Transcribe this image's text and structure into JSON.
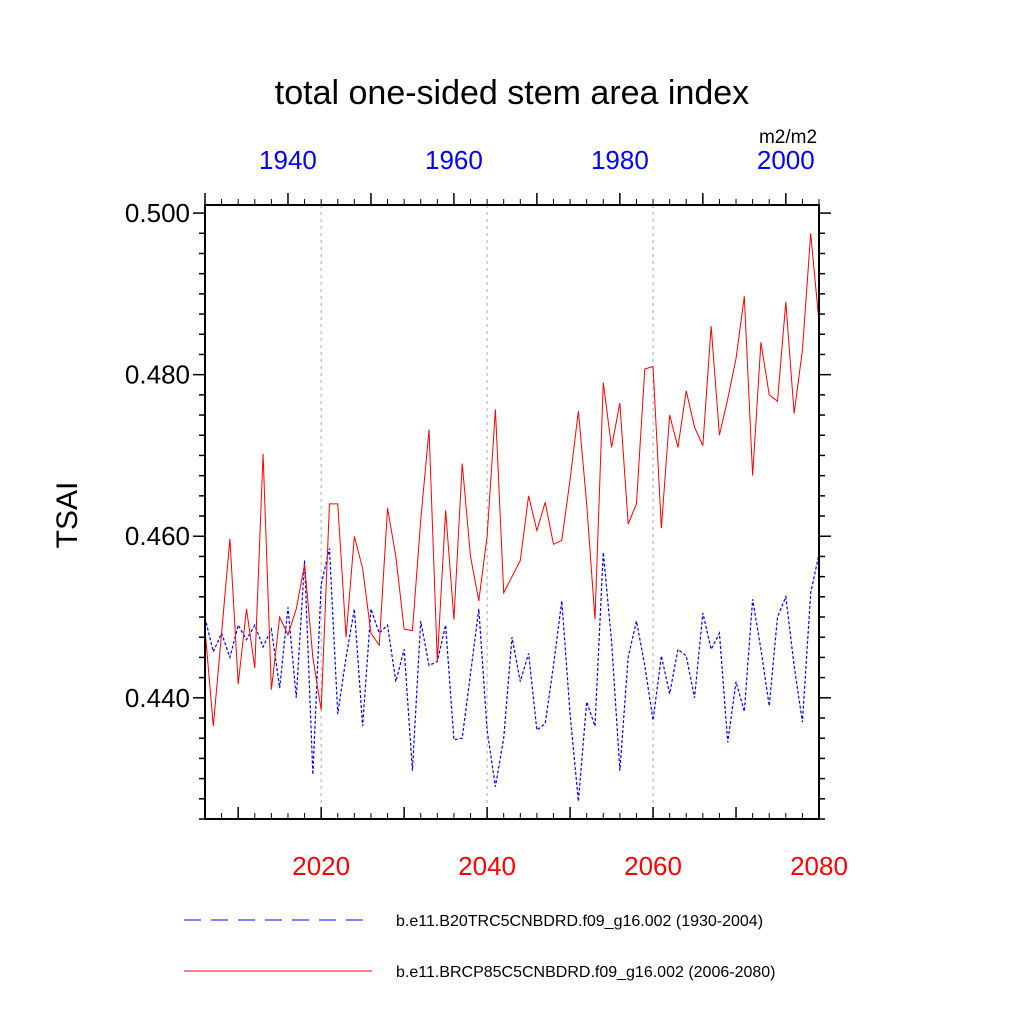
{
  "chart_data": {
    "type": "line",
    "title": "total one-sided stem area index",
    "ylabel": "TSAI",
    "units": "m2/m2",
    "ylim": [
      0.425,
      0.501
    ],
    "y_ticks": [
      0.44,
      0.46,
      0.48,
      0.5
    ],
    "y_tick_labels": [
      "0.440",
      "0.460",
      "0.480",
      "0.500"
    ],
    "bottom_axis": {
      "xlim": [
        2006,
        2080
      ],
      "ticks": [
        2020,
        2040,
        2060,
        2080
      ],
      "tick_labels": [
        "2020",
        "2040",
        "2060",
        "2080"
      ],
      "color": "#ff0000"
    },
    "top_axis": {
      "xlim": [
        1930,
        2004
      ],
      "ticks": [
        1940,
        1960,
        1980,
        2000
      ],
      "tick_labels": [
        "1940",
        "1960",
        "1980",
        "2000"
      ],
      "color": "#0000ff"
    },
    "grid_x": [
      2020,
      2040,
      2060
    ],
    "series": [
      {
        "name": "b.e11.B20TRC5CNBDRD.f09_g16.002 (1930-2004)",
        "axis": "top",
        "color": "#0000ff",
        "style": "dashed",
        "x_start": 1930,
        "values": [
          0.4499,
          0.4457,
          0.448,
          0.445,
          0.449,
          0.4472,
          0.449,
          0.4463,
          0.4485,
          0.4412,
          0.4512,
          0.44,
          0.457,
          0.4305,
          0.454,
          0.4585,
          0.438,
          0.445,
          0.451,
          0.4365,
          0.451,
          0.448,
          0.449,
          0.442,
          0.446,
          0.431,
          0.4495,
          0.444,
          0.4445,
          0.449,
          0.4348,
          0.435,
          0.443,
          0.451,
          0.436,
          0.429,
          0.435,
          0.4475,
          0.442,
          0.4455,
          0.436,
          0.4368,
          0.444,
          0.452,
          0.438,
          0.4272,
          0.4395,
          0.4365,
          0.458,
          0.447,
          0.431,
          0.445,
          0.4495,
          0.444,
          0.4372,
          0.4452,
          0.4405,
          0.446,
          0.4452,
          0.44,
          0.4505,
          0.446,
          0.448,
          0.4345,
          0.442,
          0.4383,
          0.4522,
          0.446,
          0.439,
          0.45,
          0.4525,
          0.444,
          0.437,
          0.453,
          0.4578
        ]
      },
      {
        "name": "b.e11.BRCP85C5CNBDRD.f09_g16.002 (2006-2080)",
        "axis": "bottom",
        "color": "#ff0000",
        "style": "solid",
        "x_start": 2006,
        "values": [
          0.4485,
          0.4365,
          0.448,
          0.4597,
          0.4417,
          0.451,
          0.4437,
          0.4702,
          0.441,
          0.45,
          0.4478,
          0.451,
          0.4565,
          0.445,
          0.4385,
          0.464,
          0.464,
          0.4475,
          0.46,
          0.456,
          0.448,
          0.4465,
          0.4635,
          0.4575,
          0.4485,
          0.4483,
          0.462,
          0.4732,
          0.4445,
          0.4632,
          0.4497,
          0.469,
          0.4575,
          0.452,
          0.46,
          0.4757,
          0.453,
          0.455,
          0.457,
          0.465,
          0.4607,
          0.4642,
          0.459,
          0.4595,
          0.467,
          0.4755,
          0.464,
          0.4497,
          0.479,
          0.471,
          0.4765,
          0.4615,
          0.464,
          0.4807,
          0.481,
          0.461,
          0.475,
          0.471,
          0.478,
          0.4735,
          0.4712,
          0.486,
          0.4725,
          0.477,
          0.482,
          0.4897,
          0.4675,
          0.484,
          0.4775,
          0.4767,
          0.489,
          0.4752,
          0.483,
          0.4975,
          0.4865
        ]
      }
    ]
  }
}
